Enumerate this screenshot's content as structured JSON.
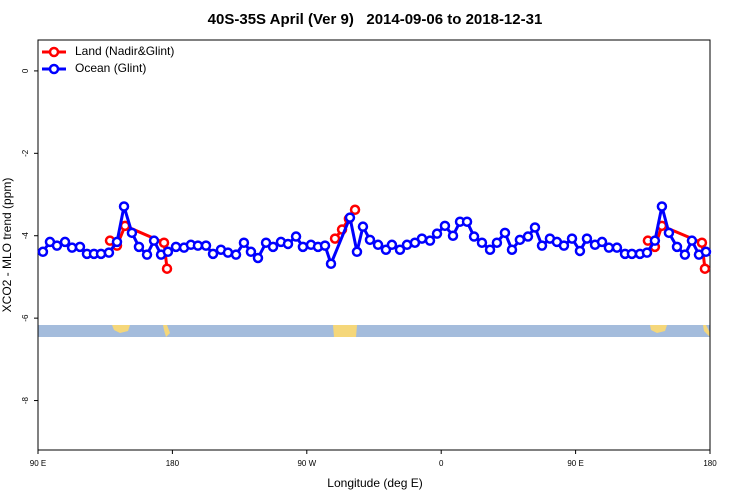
{
  "chart_data": {
    "type": "line",
    "title": "40S-35S April (Ver 9)   2014-09-06 to 2018-12-31",
    "xlabel": "Longitude (deg E)",
    "ylabel": "XCO2 - MLO trend (ppm)",
    "xlim": [
      90,
      540
    ],
    "ylim": [
      -9.2,
      0.75
    ],
    "xticks": [
      {
        "value": 90,
        "label": "90 E"
      },
      180,
      {
        "value": 270,
        "label": "90 W"
      },
      {
        "value": 360,
        "label": "0"
      },
      {
        "value": 450,
        "label": "90 E"
      },
      {
        "value": 540,
        "label": "180"
      }
    ],
    "yticks": [
      0,
      -2,
      -4,
      -6,
      -8
    ],
    "legend": "top-left",
    "series": [
      {
        "name": "Land (Nadir&Glint)",
        "color": "#ff0000",
        "x": [
          138.2,
          142.9,
          148.3,
          174.4,
          176.4,
          null,
          288.9,
          293.6,
          298.2,
          302.3,
          null,
          498.4,
          503.1,
          507.8,
          534.6,
          536.6
        ],
        "values": [
          -4.12,
          -4.24,
          -3.76,
          -4.17,
          -4.8,
          null,
          -4.07,
          -3.85,
          -3.59,
          -3.37,
          null,
          -4.12,
          -4.27,
          -3.76,
          -4.17,
          -4.8
        ]
      },
      {
        "name": "Ocean (Glint)",
        "color": "#0000ff",
        "x": [
          93.3,
          98.0,
          102.7,
          108.1,
          112.8,
          118.1,
          122.8,
          127.5,
          132.2,
          137.5,
          142.9,
          147.6,
          152.9,
          157.6,
          163.0,
          167.7,
          172.4,
          177.0,
          182.4,
          187.8,
          192.4,
          197.1,
          202.5,
          207.2,
          212.5,
          217.2,
          222.6,
          227.9,
          232.6,
          237.3,
          242.7,
          247.4,
          252.7,
          257.4,
          262.8,
          267.4,
          272.8,
          277.5,
          282.2,
          286.2,
          298.9,
          303.6,
          307.6,
          312.3,
          317.7,
          323.0,
          327.0,
          332.4,
          337.1,
          342.4,
          347.1,
          352.5,
          357.2,
          362.5,
          367.9,
          372.6,
          377.3,
          382.0,
          387.3,
          392.7,
          397.3,
          402.7,
          407.4,
          412.7,
          418.1,
          422.8,
          427.5,
          432.8,
          437.5,
          442.2,
          447.6,
          452.9,
          457.6,
          463.0,
          467.7,
          472.3,
          477.7,
          483.1,
          487.7,
          493.1,
          497.8,
          503.1,
          507.8,
          512.5,
          517.9,
          523.2,
          527.9,
          532.6,
          537.3
        ],
        "values": [
          -4.39,
          -4.15,
          -4.24,
          -4.15,
          -4.29,
          -4.27,
          -4.44,
          -4.44,
          -4.44,
          -4.41,
          -4.15,
          -3.29,
          -3.93,
          -4.27,
          -4.46,
          -4.12,
          -4.46,
          -4.39,
          -4.27,
          -4.29,
          -4.22,
          -4.24,
          -4.24,
          -4.44,
          -4.34,
          -4.41,
          -4.46,
          -4.17,
          -4.39,
          -4.54,
          -4.17,
          -4.27,
          -4.15,
          -4.2,
          -4.02,
          -4.27,
          -4.22,
          -4.27,
          -4.24,
          -4.68,
          -3.56,
          -4.39,
          -3.78,
          -4.1,
          -4.22,
          -4.34,
          -4.22,
          -4.34,
          -4.22,
          -4.17,
          -4.07,
          -4.12,
          -3.95,
          -3.76,
          -4.0,
          -3.66,
          -3.66,
          -4.02,
          -4.17,
          -4.34,
          -4.17,
          -3.93,
          -4.34,
          -4.1,
          -4.02,
          -3.8,
          -4.24,
          -4.07,
          -4.15,
          -4.24,
          -4.07,
          -4.37,
          -4.07,
          -4.22,
          -4.15,
          -4.29,
          -4.29,
          -4.44,
          -4.44,
          -4.44,
          -4.41,
          -4.12,
          -3.29,
          -3.93,
          -4.27,
          -4.46,
          -4.12,
          -4.46,
          -4.39
        ]
      }
    ]
  }
}
